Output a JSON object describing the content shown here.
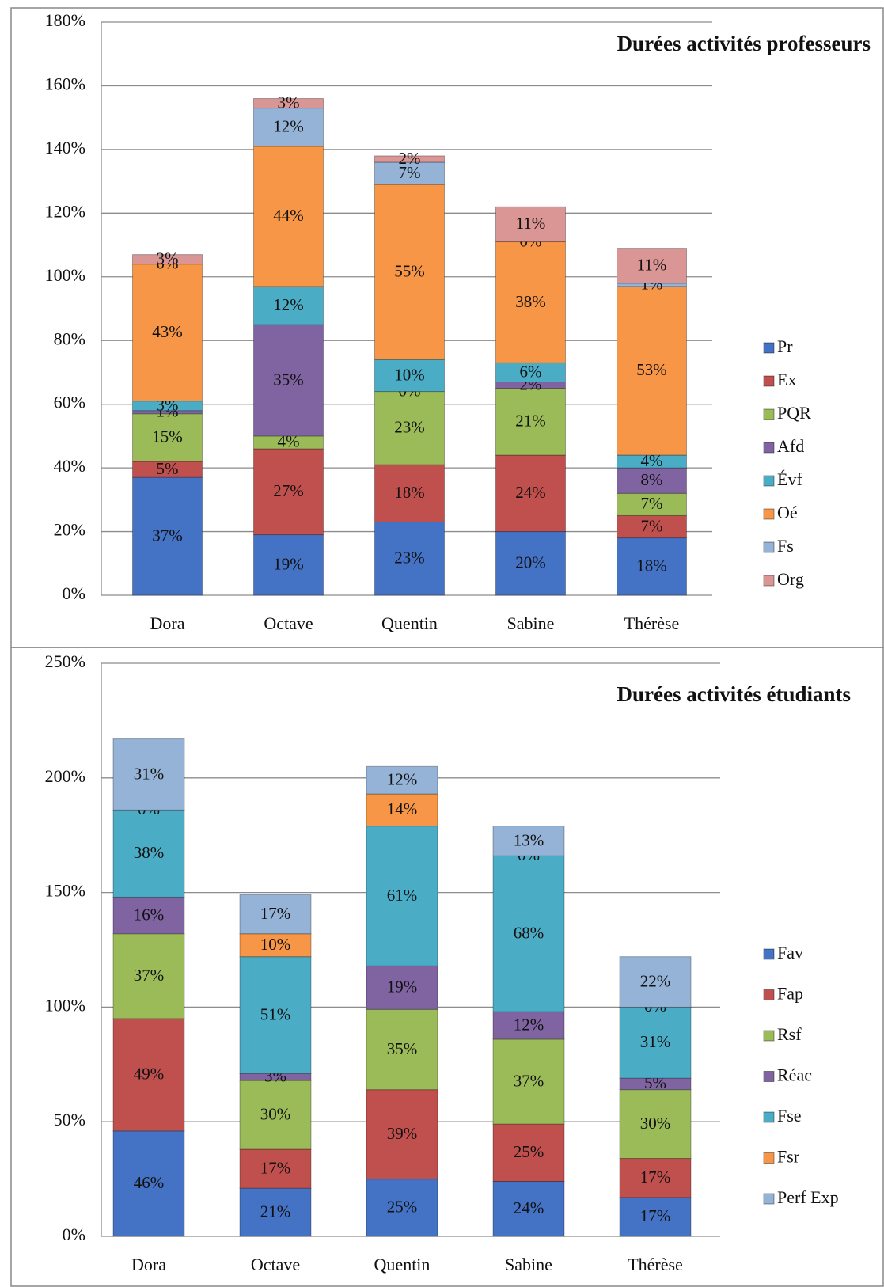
{
  "chart_data": [
    {
      "type": "bar",
      "stacked": true,
      "title": "Durées activités professeurs",
      "categories": [
        "Dora",
        "Octave",
        "Quentin",
        "Sabine",
        "Thérèse"
      ],
      "series": [
        {
          "name": "Pr",
          "color": "#4472c4",
          "values": [
            37,
            19,
            23,
            20,
            18
          ],
          "value_labels": [
            "37%",
            "19%",
            "23%",
            "20%",
            "18%"
          ]
        },
        {
          "name": "Ex",
          "color": "#c0504d",
          "values": [
            5,
            27,
            18,
            24,
            7
          ],
          "value_labels": [
            "5%",
            "27%",
            "18%",
            "24%",
            "7%"
          ]
        },
        {
          "name": "PQR",
          "color": "#9bbb59",
          "values": [
            15,
            4,
            23,
            21,
            7
          ],
          "value_labels": [
            "15%",
            "4%",
            "23%",
            "21%",
            "7%"
          ]
        },
        {
          "name": "Afd",
          "color": "#8064a2",
          "values": [
            1,
            35,
            0,
            2,
            8
          ],
          "value_labels": [
            "1%",
            "35%",
            "0%",
            "2%",
            "8%"
          ]
        },
        {
          "name": "Évf",
          "color": "#4bacc6",
          "values": [
            3,
            12,
            10,
            6,
            4
          ],
          "value_labels": [
            "3%",
            "12%",
            "10%",
            "6%",
            "4%"
          ]
        },
        {
          "name": "Oé",
          "color": "#f79646",
          "values": [
            43,
            44,
            55,
            38,
            53
          ],
          "value_labels": [
            "43%",
            "44%",
            "55%",
            "38%",
            "53%"
          ]
        },
        {
          "name": "Fs",
          "color": "#95b3d7",
          "values": [
            0,
            12,
            7,
            0,
            1
          ],
          "value_labels": [
            "0%",
            "12%",
            "7%",
            "0%",
            "1%"
          ]
        },
        {
          "name": "Org",
          "color": "#d99694",
          "values": [
            3,
            3,
            2,
            11,
            11
          ],
          "value_labels": [
            "3%",
            "3%",
            "2%",
            "11%",
            "11%"
          ]
        }
      ],
      "ylim": [
        0,
        180
      ],
      "yticks": [
        {
          "value": 0,
          "label": "0%"
        },
        {
          "value": 20,
          "label": "20%"
        },
        {
          "value": 40,
          "label": "40%"
        },
        {
          "value": 60,
          "label": "60%"
        },
        {
          "value": 80,
          "label": "80%"
        },
        {
          "value": 100,
          "label": "100%"
        },
        {
          "value": 120,
          "label": "120%"
        },
        {
          "value": 140,
          "label": "140%"
        },
        {
          "value": 160,
          "label": "160%"
        },
        {
          "value": 180,
          "label": "180%"
        }
      ],
      "grid": true,
      "legend": "right"
    },
    {
      "type": "bar",
      "stacked": true,
      "title": "Durées activités étudiants",
      "categories": [
        "Dora",
        "Octave",
        "Quentin",
        "Sabine",
        "Thérèse"
      ],
      "series": [
        {
          "name": "Fav",
          "color": "#4472c4",
          "values": [
            46,
            21,
            25,
            24,
            17
          ],
          "value_labels": [
            "46%",
            "21%",
            "25%",
            "24%",
            "17%"
          ]
        },
        {
          "name": "Fap",
          "color": "#c0504d",
          "values": [
            49,
            17,
            39,
            25,
            17
          ],
          "value_labels": [
            "49%",
            "17%",
            "39%",
            "25%",
            "17%"
          ]
        },
        {
          "name": "Rsf",
          "color": "#9bbb59",
          "values": [
            37,
            30,
            35,
            37,
            30
          ],
          "value_labels": [
            "37%",
            "30%",
            "35%",
            "37%",
            "30%"
          ]
        },
        {
          "name": "Réac",
          "color": "#8064a2",
          "values": [
            16,
            3,
            19,
            12,
            5
          ],
          "value_labels": [
            "16%",
            "3%",
            "19%",
            "12%",
            "5%"
          ]
        },
        {
          "name": "Fse",
          "color": "#4bacc6",
          "values": [
            38,
            51,
            61,
            68,
            31
          ],
          "value_labels": [
            "38%",
            "51%",
            "61%",
            "68%",
            "31%"
          ]
        },
        {
          "name": "Fsr",
          "color": "#f79646",
          "values": [
            0,
            10,
            14,
            0,
            0
          ],
          "value_labels": [
            "0%",
            "10%",
            "14%",
            "0%",
            "0%"
          ]
        },
        {
          "name": "Perf Exp",
          "color": "#95b3d7",
          "values": [
            31,
            17,
            12,
            13,
            22
          ],
          "value_labels": [
            "31%",
            "17%",
            "12%",
            "13%",
            "22%"
          ]
        }
      ],
      "ylim": [
        0,
        250
      ],
      "yticks": [
        {
          "value": 0,
          "label": "0%"
        },
        {
          "value": 50,
          "label": "50%"
        },
        {
          "value": 100,
          "label": "100%"
        },
        {
          "value": 150,
          "label": "150%"
        },
        {
          "value": 200,
          "label": "200%"
        },
        {
          "value": 250,
          "label": "250%"
        }
      ],
      "grid": true,
      "legend": "right"
    }
  ]
}
